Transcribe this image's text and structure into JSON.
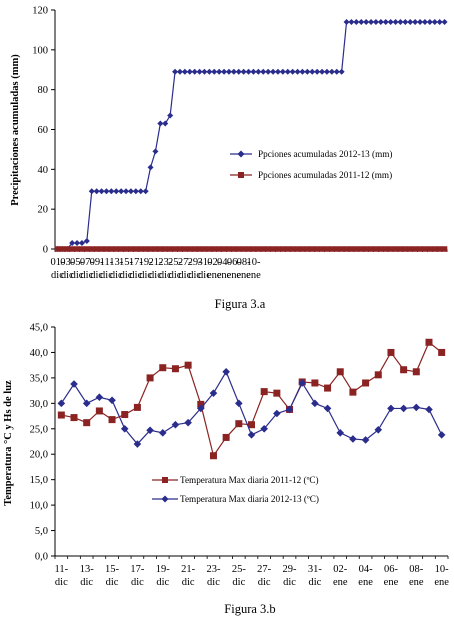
{
  "chart_data": [
    {
      "type": "line",
      "title": "",
      "caption": "Figura 3.a",
      "ylabel": "Precipitaciones acumuladas (mm)",
      "xlabel": "",
      "ylim": [
        0,
        120
      ],
      "yticks": [
        0,
        20,
        40,
        60,
        80,
        100,
        120
      ],
      "ytick_labels": [
        "0",
        "20",
        "40",
        "60",
        "80",
        "100",
        "120"
      ],
      "x_date_labels": [
        [
          "01-",
          "dic"
        ],
        [
          "03-",
          "dic"
        ],
        [
          "05-",
          "dic"
        ],
        [
          "07-",
          "dic"
        ],
        [
          "09-",
          "dic"
        ],
        [
          "11-",
          "dic"
        ],
        [
          "13-",
          "dic"
        ],
        [
          "15-",
          "dic"
        ],
        [
          "17-",
          "dic"
        ],
        [
          "19-",
          "dic"
        ],
        [
          "21-",
          "dic"
        ],
        [
          "23-",
          "dic"
        ],
        [
          "25-",
          "dic"
        ],
        [
          "27-",
          "dic"
        ],
        [
          "29-",
          "dic"
        ],
        [
          "31-",
          "dic"
        ],
        [
          "02-",
          "ene"
        ],
        [
          "04-",
          "ene"
        ],
        [
          "06-",
          "ene"
        ],
        [
          "08-",
          "ene"
        ],
        [
          "10-",
          "ene"
        ]
      ],
      "legend_position": "right-middle",
      "grid": false,
      "series": [
        {
          "name": "Ppciones acumuladas 2012-13 (mm)",
          "color": "#2b2d8c",
          "marker": "diamond",
          "values": [
            0,
            0,
            0,
            3,
            3,
            3,
            4,
            29,
            29,
            29,
            29,
            29,
            29,
            29,
            29,
            29,
            29,
            29,
            29,
            41,
            49,
            63,
            63,
            67,
            89,
            89,
            89,
            89,
            89,
            89,
            89,
            89,
            89,
            89,
            89,
            89,
            89,
            89,
            89,
            89,
            89,
            89,
            89,
            89,
            89,
            89,
            89,
            89,
            89,
            89,
            89,
            89,
            89,
            89,
            89,
            89,
            89,
            89,
            89,
            114,
            114,
            114,
            114,
            114,
            114,
            114,
            114,
            114,
            114,
            114,
            114,
            114,
            114,
            114,
            114,
            114,
            114,
            114,
            114,
            114
          ]
        },
        {
          "name": "Ppciones acumuladas 2011-12 (mm)",
          "color": "#8b2323",
          "marker": "square",
          "values": [
            0,
            0,
            0,
            0,
            0,
            0,
            0,
            0,
            0,
            0,
            0,
            0,
            0,
            0,
            0,
            0,
            0,
            0,
            0,
            0,
            0,
            0,
            0,
            0,
            0,
            0,
            0,
            0,
            0,
            0,
            0,
            0,
            0,
            0,
            0,
            0,
            0,
            0,
            0,
            0,
            0,
            0,
            0,
            0,
            0,
            0,
            0,
            0,
            0,
            0,
            0,
            0,
            0,
            0,
            0,
            0,
            0,
            0,
            0,
            0,
            0,
            0,
            0,
            0,
            0,
            0,
            0,
            0,
            0,
            0,
            0,
            0,
            0,
            0,
            0,
            0,
            0,
            0,
            0,
            0
          ]
        }
      ]
    },
    {
      "type": "line",
      "title": "",
      "caption": "Figura 3.b",
      "ylabel": "Temperatura °C y Hs de luz",
      "xlabel": "",
      "ylim": [
        0,
        45
      ],
      "yticks": [
        0,
        5,
        10,
        15,
        20,
        25,
        30,
        35,
        40,
        45
      ],
      "ytick_labels": [
        "0,0",
        "5,0",
        "10,0",
        "15,0",
        "20,0",
        "25,0",
        "30,0",
        "35,0",
        "40,0",
        "45,0"
      ],
      "x_date_labels": [
        [
          "11-",
          "dic"
        ],
        [
          "13-",
          "dic"
        ],
        [
          "15-",
          "dic"
        ],
        [
          "17-",
          "dic"
        ],
        [
          "19-",
          "dic"
        ],
        [
          "21-",
          "dic"
        ],
        [
          "23-",
          "dic"
        ],
        [
          "25-",
          "dic"
        ],
        [
          "27-",
          "dic"
        ],
        [
          "29-",
          "dic"
        ],
        [
          "31-",
          "dic"
        ],
        [
          "02-",
          "ene"
        ],
        [
          "04-",
          "ene"
        ],
        [
          "06-",
          "ene"
        ],
        [
          "08-",
          "ene"
        ],
        [
          "10-",
          "ene"
        ]
      ],
      "legend_position": "bottom-center",
      "grid": false,
      "series": [
        {
          "name": "Temperatura Max diaria 2011-12 (ºC)",
          "color": "#8b2323",
          "marker": "square",
          "values": [
            27.7,
            27.2,
            26.2,
            28.5,
            26.8,
            27.8,
            29.2,
            35.0,
            37.0,
            36.8,
            37.5,
            29.8,
            19.7,
            23.3,
            26.0,
            25.8,
            32.3,
            32.0,
            28.8,
            34.2,
            34.0,
            33.0,
            36.2,
            32.2,
            34.0,
            35.6,
            40.0,
            36.6,
            36.2,
            42.0,
            40.0
          ]
        },
        {
          "name": "Temperatura Max diaria 2012-13 (ºC)",
          "color": "#2b2d8c",
          "marker": "diamond",
          "values": [
            30.0,
            33.8,
            30.0,
            31.2,
            30.6,
            25.0,
            22.0,
            24.7,
            24.2,
            25.8,
            26.2,
            29.0,
            32.0,
            36.2,
            30.0,
            23.8,
            25.0,
            28.0,
            28.8,
            34.0,
            30.0,
            29.0,
            24.2,
            23.0,
            22.8,
            24.8,
            29.0,
            29.0,
            29.2,
            28.8,
            23.8
          ]
        }
      ]
    }
  ]
}
